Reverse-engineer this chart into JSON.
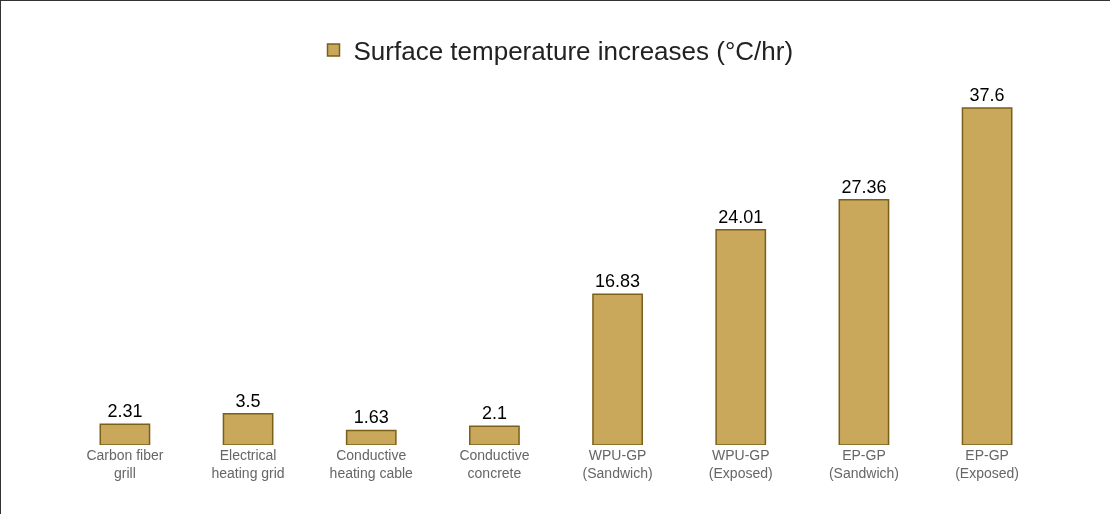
{
  "chart_data": {
    "type": "bar",
    "categories": [
      "Carbon fiber\ngrill",
      "Electrical\nheating grid",
      "Conductive\nheating cable",
      "Conductive\nconcrete",
      "WPU-GP\n(Sandwich)",
      "WPU-GP\n(Exposed)",
      "EP-GP\n(Sandwich)",
      "EP-GP\n(Exposed)"
    ],
    "series": [
      {
        "name": "Surface temperature increases (°C/hr)",
        "color": "#c9a85c",
        "values": [
          2.31,
          3.5,
          1.63,
          2.1,
          16.83,
          24.01,
          27.36,
          37.6
        ]
      }
    ],
    "data_labels": true,
    "legend": "top",
    "grid": false
  }
}
